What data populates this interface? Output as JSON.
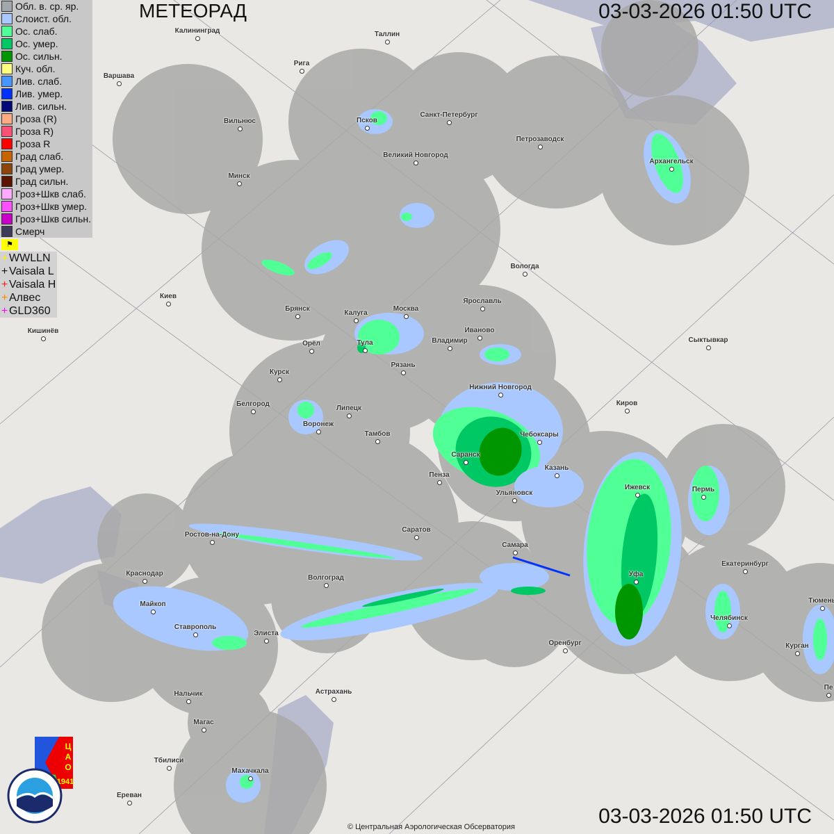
{
  "header": {
    "title": "МЕТЕОРАД",
    "timestamp": "03-03-2026  01:50 UTC",
    "timestamp_bottom": "03-03-2026  01:50 UTC"
  },
  "footer": {
    "copyright": "© Центральная Аэрологическая Обсерватория"
  },
  "legend": [
    {
      "label": "Обл. в. ср. яр.",
      "color": "#a0a8ac"
    },
    {
      "label": "Слоист. обл.",
      "color": "#a8c8ff"
    },
    {
      "label": "Ос. слаб.",
      "color": "#50ff96"
    },
    {
      "label": "Ос. умер.",
      "color": "#00c864"
    },
    {
      "label": "Ос. сильн.",
      "color": "#009600"
    },
    {
      "label": "Куч. обл.",
      "color": "#ffff80"
    },
    {
      "label": "Лив. слаб.",
      "color": "#4696ff"
    },
    {
      "label": "Лив. умер.",
      "color": "#0032ff"
    },
    {
      "label": "Лив. сильн.",
      "color": "#000a78"
    },
    {
      "label": "Гроза (R)",
      "color": "#ffaa82"
    },
    {
      "label": "Гроза R)",
      "color": "#ff5078"
    },
    {
      "label": "Гроза R",
      "color": "#ff0000"
    },
    {
      "label": "Град слаб.",
      "color": "#c86400"
    },
    {
      "label": "Град умер.",
      "color": "#8c460a"
    },
    {
      "label": "Град сильн.",
      "color": "#5a1400"
    },
    {
      "label": "Гроз+Шкв слаб.",
      "color": "#ffaaff"
    },
    {
      "label": "Гроз+Шкв умер.",
      "color": "#ff50ff"
    },
    {
      "label": "Гроз+Шкв сильн.",
      "color": "#c800c8"
    },
    {
      "label": "Смерч",
      "color": "#3c3c5a"
    }
  ],
  "flag_icon": "flag-toggle-icon",
  "lightning_networks": [
    {
      "label": "WWLLN",
      "color": "#ffee00"
    },
    {
      "label": "Vaisala L",
      "color": "#111111"
    },
    {
      "label": "Vaisala H",
      "color": "#ff2020"
    },
    {
      "label": "Алвес",
      "color": "#ff8800"
    },
    {
      "label": "GLD360",
      "color": "#ff00ff"
    }
  ],
  "logos": {
    "tsao": "ЦАО 1941",
    "roshydromet": "РОСГИДРОМЕТ ROSHYDROMET"
  },
  "cities": [
    "Калининград",
    "Таллин",
    "Рига",
    "Варшава",
    "Вильнюс",
    "Псков",
    "Санкт-Петербург",
    "Петрозаводск",
    "Великий Новгород",
    "Архангельск",
    "Минск",
    "Вологда",
    "Киев",
    "Брянск",
    "Калуга",
    "Москва",
    "Ярославль",
    "Кишинёв",
    "Орёл",
    "Тула",
    "Иваново",
    "Владимир",
    "Сыктывкар",
    "Рязань",
    "Курск",
    "Нижний Новгород",
    "Белгород",
    "Липецк",
    "Киров",
    "Воронеж",
    "Тамбов",
    "Чебоксары",
    "Саранск",
    "Казань",
    "Пенза",
    "Ижевск",
    "Пермь",
    "Ульяновск",
    "Ростов-на-Дону",
    "Саратов",
    "Самара",
    "Краснодар",
    "Волгоград",
    "Екатеринбург",
    "Уфа",
    "Майкоп",
    "Тюмень",
    "Челябинск",
    "Ставрополь",
    "Элиста",
    "Оренбург",
    "Курган",
    "Астрахань",
    "Нальчик",
    "Пе",
    "Магас",
    "Тбилиси",
    "Махачкала",
    "Ереван"
  ]
}
